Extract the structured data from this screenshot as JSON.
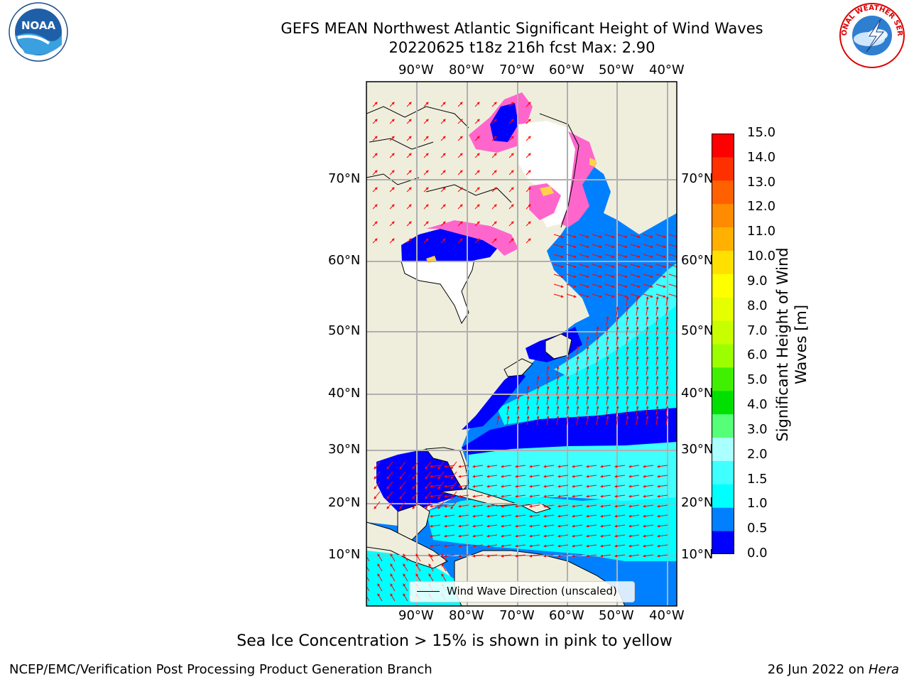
{
  "title_line1": "GEFS MEAN Northwest Atlantic Significant Height of Wind Waves",
  "title_line2": "20220625 t18z 216h fcst   Max: 2.90",
  "logos": {
    "left": "noaa-logo",
    "right": "national-weather-service-logo",
    "left_text": "NOAA",
    "right_text": "NATIONAL WEATHER SERVICE"
  },
  "map": {
    "projection": "Mercator",
    "lon_ticks": [
      "90°W",
      "80°W",
      "70°W",
      "60°W",
      "50°W",
      "40°W"
    ],
    "lat_ticks": [
      "70°N",
      "60°N",
      "50°N",
      "40°N",
      "30°N",
      "20°N",
      "10°N"
    ],
    "lon_values": [
      -90,
      -80,
      -70,
      -60,
      -50,
      -40
    ],
    "lat_values": [
      70,
      60,
      50,
      40,
      30,
      20,
      10
    ],
    "land_color": "#efeedd",
    "ice_note_colors": [
      "#ff66cc",
      "#ffd24d"
    ]
  },
  "legend_label": "Wind Wave Direction (unscaled)",
  "colorbar": {
    "label": "Significant Height of Wind Waves [m]",
    "label_line1": "Significant Height of Wind",
    "label_line2": "Waves [m]",
    "ticks": [
      "15.0",
      "14.0",
      "13.0",
      "12.0",
      "11.0",
      "10.0",
      "9.0",
      "8.0",
      "7.0",
      "6.0",
      "5.0",
      "4.0",
      "3.0",
      "2.0",
      "1.5",
      "1.0",
      "0.5",
      "0.0"
    ],
    "colors": [
      "#0000ff",
      "#0080ff",
      "#00ffff",
      "#40ffff",
      "#aaffff",
      "#55ff77",
      "#00e000",
      "#40f000",
      "#9cff00",
      "#c8ff00",
      "#e6ff00",
      "#ffff00",
      "#ffe000",
      "#ffb000",
      "#ff8c00",
      "#ff6000",
      "#ff3000",
      "#ff0000"
    ]
  },
  "note": "Sea Ice Concentration > 15% is shown in pink to yellow",
  "footer_left": "NCEP/EMC/Verification Post Processing Product Generation Branch",
  "footer_date": "26 Jun 2022 on ",
  "footer_host": "Hera"
}
